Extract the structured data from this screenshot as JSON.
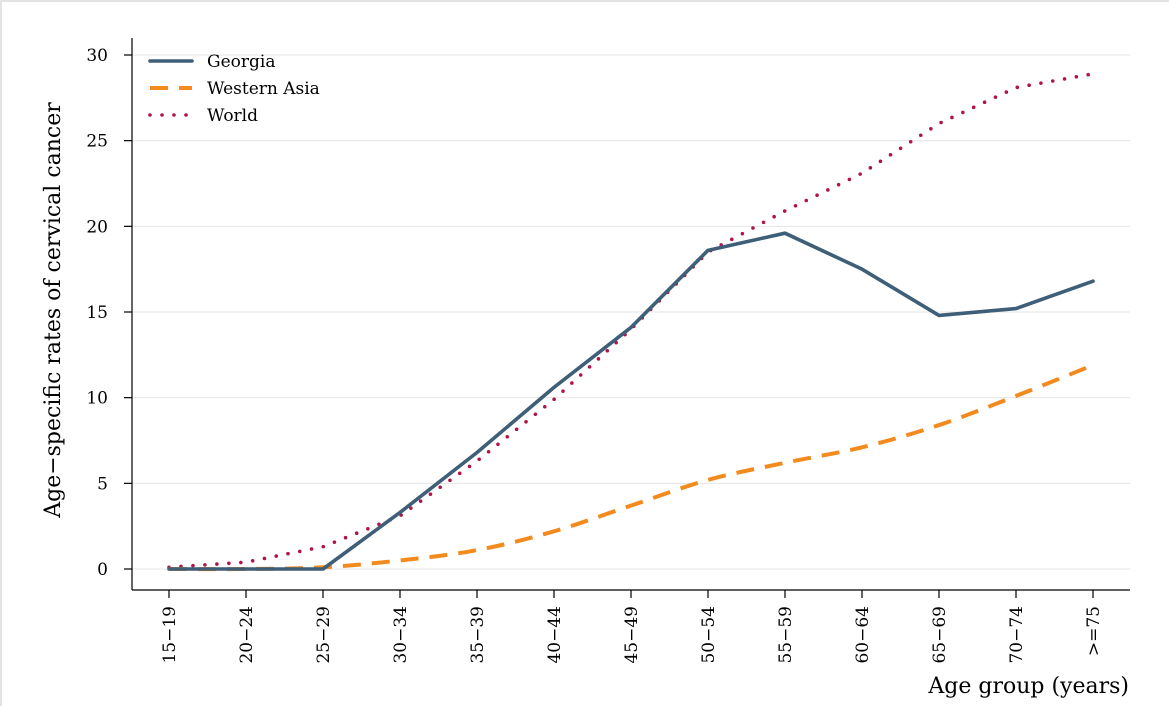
{
  "chart_data": {
    "type": "line",
    "title": "",
    "xlabel": "Age group (years)",
    "ylabel": "Age−specific rates of cervical cancer",
    "categories": [
      "15−19",
      "20−24",
      "25−29",
      "30−34",
      "35−39",
      "40−44",
      "45−49",
      "50−54",
      "55−59",
      "60−64",
      "65−69",
      "70−74",
      ">=75"
    ],
    "ylim": [
      0,
      30
    ],
    "yticks": [
      0,
      5,
      10,
      15,
      20,
      25,
      30
    ],
    "grid": true,
    "legend_position": "top-left",
    "series": [
      {
        "name": "Georgia",
        "color": "#3e5f77",
        "style": "solid",
        "values": [
          0,
          0,
          0,
          3.3,
          6.8,
          10.6,
          14.1,
          18.6,
          19.6,
          17.5,
          14.8,
          15.2,
          16.8
        ]
      },
      {
        "name": "Western Asia",
        "color": "#f28a1e",
        "style": "dashed",
        "values": [
          0,
          0,
          0.1,
          0.5,
          1.1,
          2.2,
          3.7,
          5.2,
          6.2,
          7.1,
          8.4,
          10.1,
          11.9
        ]
      },
      {
        "name": "World",
        "color": "#b0134a",
        "style": "dotted",
        "values": [
          0.1,
          0.4,
          1.3,
          3.1,
          6.3,
          9.9,
          14.0,
          18.5,
          20.9,
          23.1,
          26.0,
          28.1,
          28.9
        ]
      }
    ]
  }
}
